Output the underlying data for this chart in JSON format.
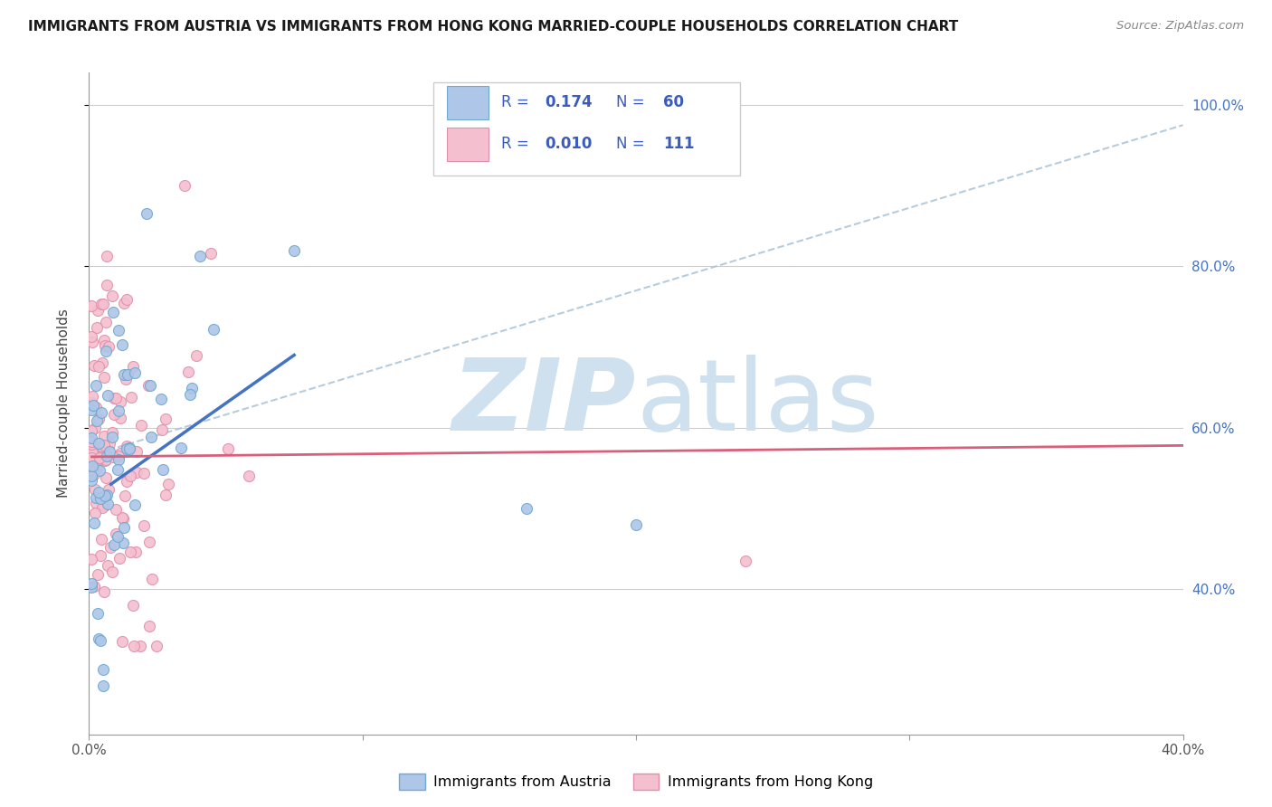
{
  "title": "IMMIGRANTS FROM AUSTRIA VS IMMIGRANTS FROM HONG KONG MARRIED-COUPLE HOUSEHOLDS CORRELATION CHART",
  "source": "Source: ZipAtlas.com",
  "ylabel": "Married-couple Households",
  "austria_color": "#aec6e8",
  "austria_edge_color": "#6fa8d0",
  "hongkong_color": "#f4bfcf",
  "hongkong_edge_color": "#e090a8",
  "austria_R": 0.174,
  "austria_N": 60,
  "hongkong_R": 0.01,
  "hongkong_N": 111,
  "austria_line_color": "#4472c4",
  "hongkong_line_color": "#d9607a",
  "dashed_line_color": "#aac4d8",
  "watermark_color": "#cfe0ee",
  "legend_color": "#3a5cbf",
  "ytick_color": "#4472c4",
  "xlim": [
    0.0,
    0.4
  ],
  "ylim": [
    0.22,
    1.04
  ],
  "ytick_positions": [
    0.4,
    0.6,
    0.8,
    1.0
  ],
  "ytick_labels": [
    "40.0%",
    "60.0%",
    "80.0%",
    "100.0%"
  ],
  "xtick_positions": [
    0.0,
    0.1,
    0.2,
    0.3,
    0.4
  ],
  "xtick_labels": [
    "0.0%",
    "",
    "",
    "",
    "40.0%"
  ]
}
